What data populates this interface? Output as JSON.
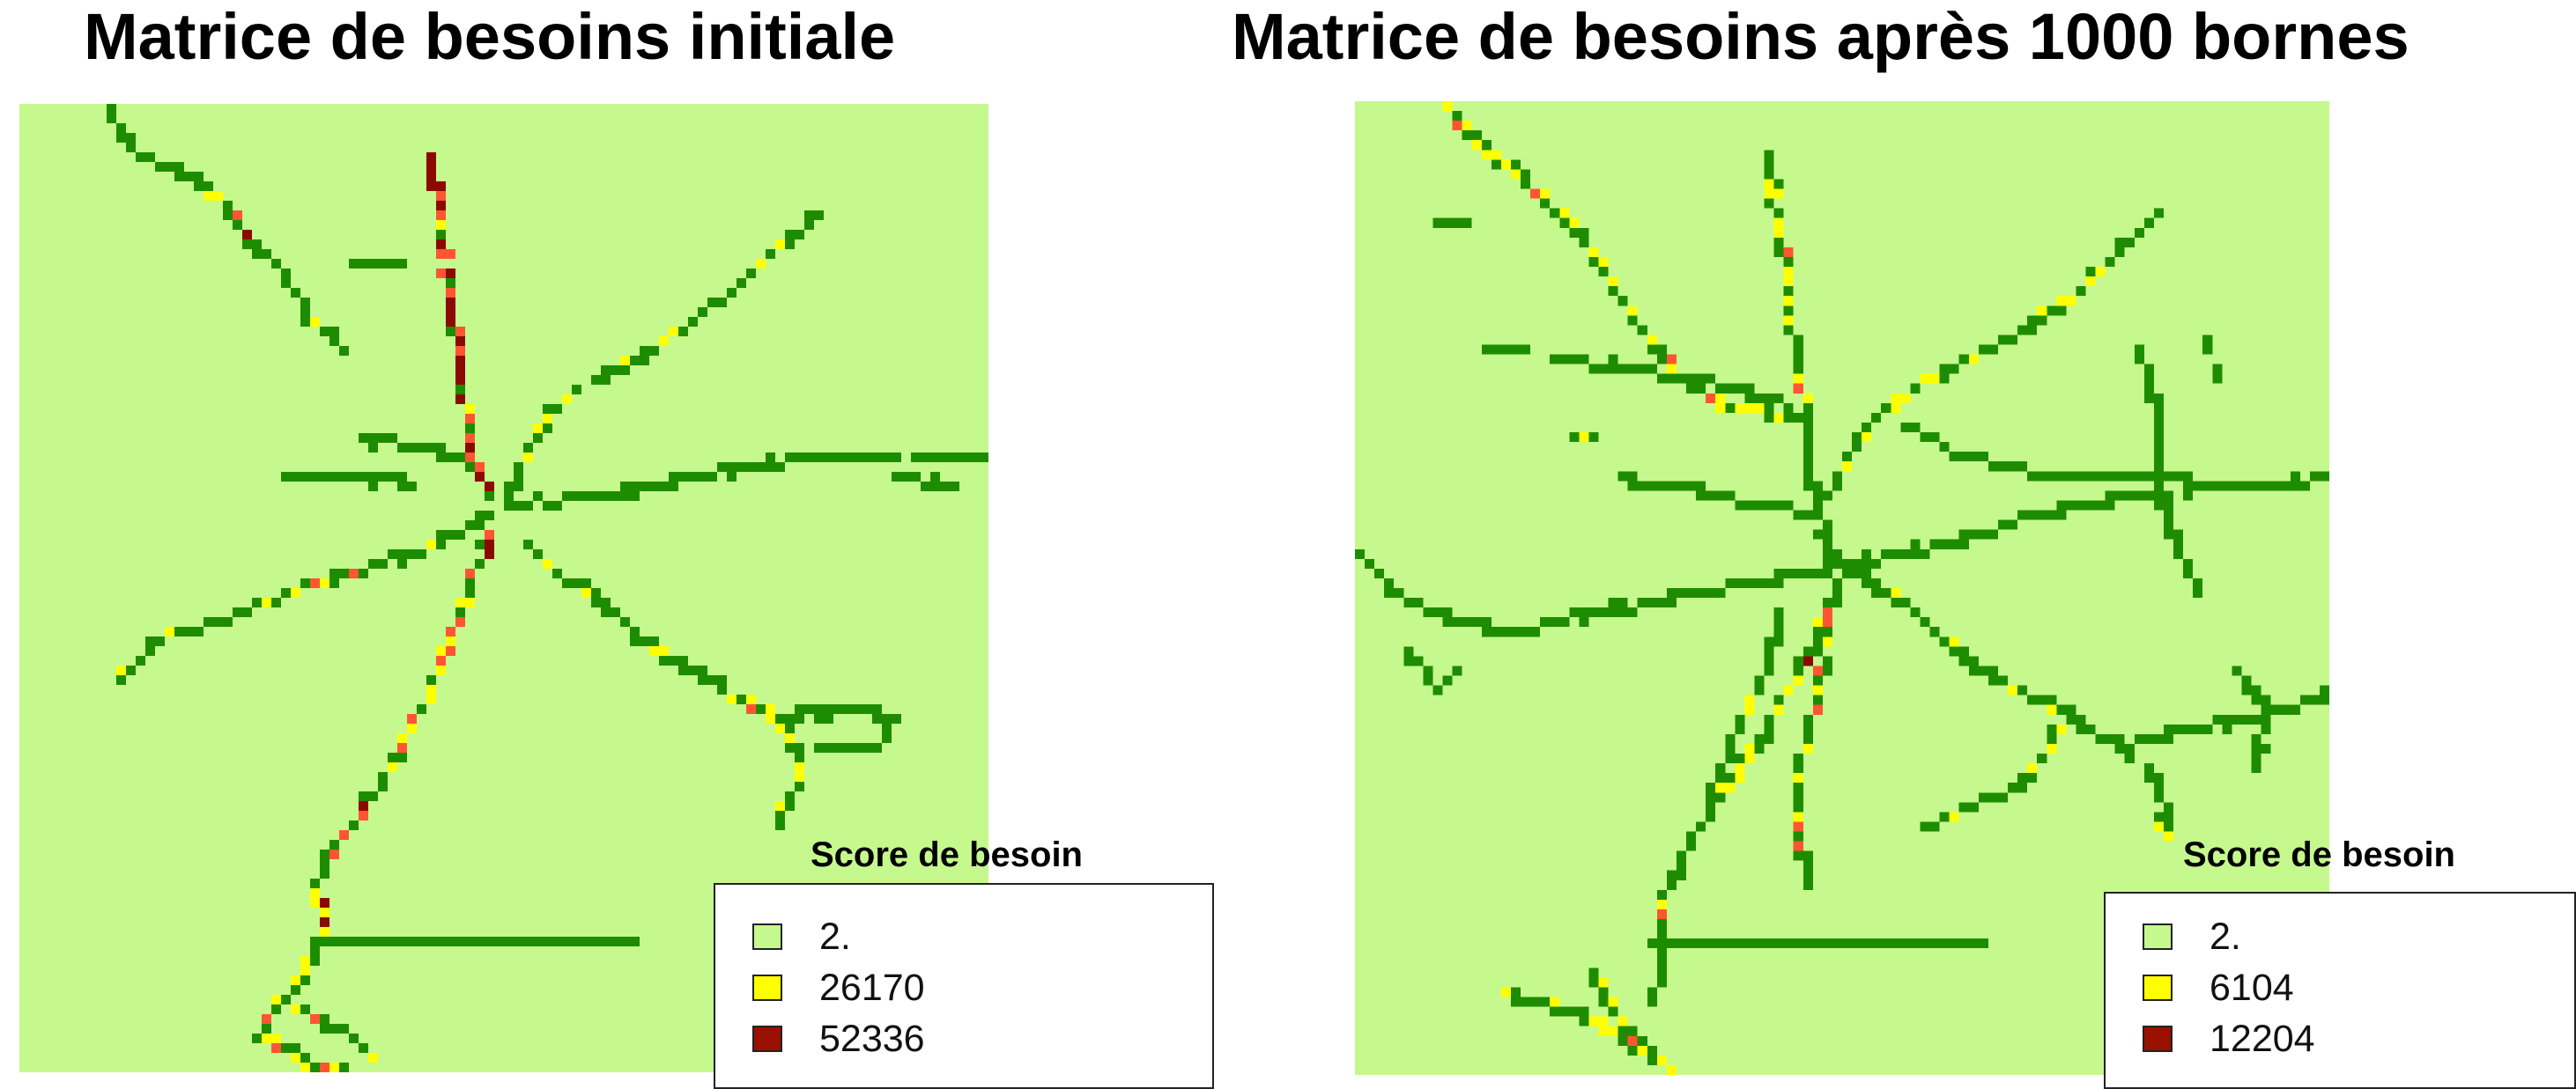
{
  "panels": [
    {
      "title": "Matrice de besoins initiale",
      "legend": {
        "title": "Score de besoin",
        "items": [
          {
            "label": "2.",
            "color": "#c5f98d"
          },
          {
            "label": "26170",
            "color": "#ffff00"
          },
          {
            "label": "52336",
            "color": "#991100"
          }
        ]
      }
    },
    {
      "title": "Matrice de besoins après 1000 bornes",
      "legend": {
        "title": "Score de besoin",
        "items": [
          {
            "label": "2.",
            "color": "#c5f98d"
          },
          {
            "label": "6104",
            "color": "#ffff00"
          },
          {
            "label": "12204",
            "color": "#991100"
          }
        ]
      }
    }
  ],
  "colors": {
    "background": "#c5f98d",
    "road_low": "#1e8c00",
    "road_mid": "#ffff00",
    "road_high": "#ff5533",
    "road_max": "#8b0a00"
  }
}
